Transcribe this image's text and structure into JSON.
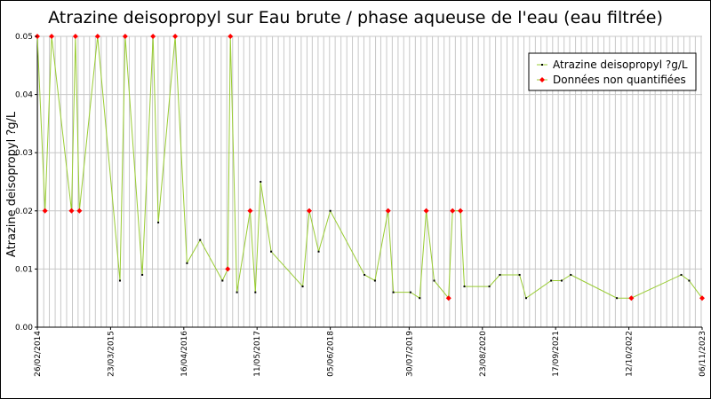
{
  "chart_data": {
    "type": "line",
    "title": "Atrazine deisopropyl sur Eau brute / phase aqueuse de l'eau (eau filtrée)",
    "ylabel": "Atrazine deisopropyl ?g/L",
    "xlabel": "",
    "x_range": [
      "2014-02-26",
      "2023-11-06"
    ],
    "ylim": [
      0,
      0.05
    ],
    "y_ticks": [
      "0.00",
      "0.01",
      "0.02",
      "0.03",
      "0.04",
      "0.05"
    ],
    "x_ticks": [
      "26/02/2014",
      "23/03/2015",
      "16/04/2016",
      "11/05/2017",
      "05/06/2018",
      "30/07/2019",
      "23/08/2020",
      "17/09/2021",
      "12/10/2022",
      "06/11/2023"
    ],
    "grid": true,
    "legend_position": "top-right",
    "colors": {
      "line": "#99cc33",
      "measured": "#000000",
      "non_quantified": "#ff0000",
      "grid": "#c8c8c8"
    },
    "series": [
      {
        "name": "Atrazine deisopropyl ?g/L",
        "marker": "dot"
      },
      {
        "name": "Données non quantifiées",
        "marker": "diamond"
      }
    ],
    "points": [
      {
        "x": "2014-02-26",
        "y": 0.05,
        "nq": true
      },
      {
        "x": "2014-04-08",
        "y": 0.02,
        "nq": true
      },
      {
        "x": "2014-05-13",
        "y": 0.05,
        "nq": true
      },
      {
        "x": "2014-08-27",
        "y": 0.02,
        "nq": true
      },
      {
        "x": "2014-09-17",
        "y": 0.05,
        "nq": true
      },
      {
        "x": "2014-10-08",
        "y": 0.02,
        "nq": true
      },
      {
        "x": "2015-01-13",
        "y": 0.05,
        "nq": true
      },
      {
        "x": "2015-05-12",
        "y": 0.008,
        "nq": false
      },
      {
        "x": "2015-06-09",
        "y": 0.05,
        "nq": true
      },
      {
        "x": "2015-09-08",
        "y": 0.009,
        "nq": false
      },
      {
        "x": "2015-11-04",
        "y": 0.05,
        "nq": true
      },
      {
        "x": "2015-12-02",
        "y": 0.018,
        "nq": false
      },
      {
        "x": "2016-03-01",
        "y": 0.05,
        "nq": true
      },
      {
        "x": "2016-05-03",
        "y": 0.011,
        "nq": false
      },
      {
        "x": "2016-07-12",
        "y": 0.015,
        "nq": false
      },
      {
        "x": "2016-11-08",
        "y": 0.008,
        "nq": false
      },
      {
        "x": "2016-12-06",
        "y": 0.01,
        "nq": true
      },
      {
        "x": "2016-12-20",
        "y": 0.05,
        "nq": true
      },
      {
        "x": "2017-01-24",
        "y": 0.006,
        "nq": false
      },
      {
        "x": "2017-04-04",
        "y": 0.02,
        "nq": true
      },
      {
        "x": "2017-05-02",
        "y": 0.006,
        "nq": false
      },
      {
        "x": "2017-05-30",
        "y": 0.025,
        "nq": false
      },
      {
        "x": "2017-07-25",
        "y": 0.013,
        "nq": false
      },
      {
        "x": "2018-01-09",
        "y": 0.007,
        "nq": false
      },
      {
        "x": "2018-02-13",
        "y": 0.02,
        "nq": true
      },
      {
        "x": "2018-04-04",
        "y": 0.013,
        "nq": false
      },
      {
        "x": "2018-06-05",
        "y": 0.02,
        "nq": false
      },
      {
        "x": "2018-12-04",
        "y": 0.009,
        "nq": false
      },
      {
        "x": "2019-01-29",
        "y": 0.008,
        "nq": false
      },
      {
        "x": "2019-04-09",
        "y": 0.02,
        "nq": true
      },
      {
        "x": "2019-05-07",
        "y": 0.006,
        "nq": false
      },
      {
        "x": "2019-08-06",
        "y": 0.006,
        "nq": false
      },
      {
        "x": "2019-09-24",
        "y": 0.005,
        "nq": false
      },
      {
        "x": "2019-10-29",
        "y": 0.02,
        "nq": true
      },
      {
        "x": "2019-12-10",
        "y": 0.008,
        "nq": false
      },
      {
        "x": "2020-02-25",
        "y": 0.005,
        "nq": true
      },
      {
        "x": "2020-03-17",
        "y": 0.02,
        "nq": true
      },
      {
        "x": "2020-04-28",
        "y": 0.02,
        "nq": true
      },
      {
        "x": "2020-05-19",
        "y": 0.007,
        "nq": false
      },
      {
        "x": "2020-09-29",
        "y": 0.007,
        "nq": false
      },
      {
        "x": "2020-11-24",
        "y": 0.009,
        "nq": false
      },
      {
        "x": "2021-03-09",
        "y": 0.009,
        "nq": false
      },
      {
        "x": "2021-04-13",
        "y": 0.005,
        "nq": false
      },
      {
        "x": "2021-08-24",
        "y": 0.008,
        "nq": false
      },
      {
        "x": "2021-10-19",
        "y": 0.008,
        "nq": false
      },
      {
        "x": "2021-12-07",
        "y": 0.009,
        "nq": false
      },
      {
        "x": "2022-08-09",
        "y": 0.005,
        "nq": false
      },
      {
        "x": "2022-10-25",
        "y": 0.005,
        "nq": true
      },
      {
        "x": "2023-07-18",
        "y": 0.009,
        "nq": false
      },
      {
        "x": "2023-08-29",
        "y": 0.008,
        "nq": false
      },
      {
        "x": "2023-11-06",
        "y": 0.005,
        "nq": true
      }
    ]
  }
}
